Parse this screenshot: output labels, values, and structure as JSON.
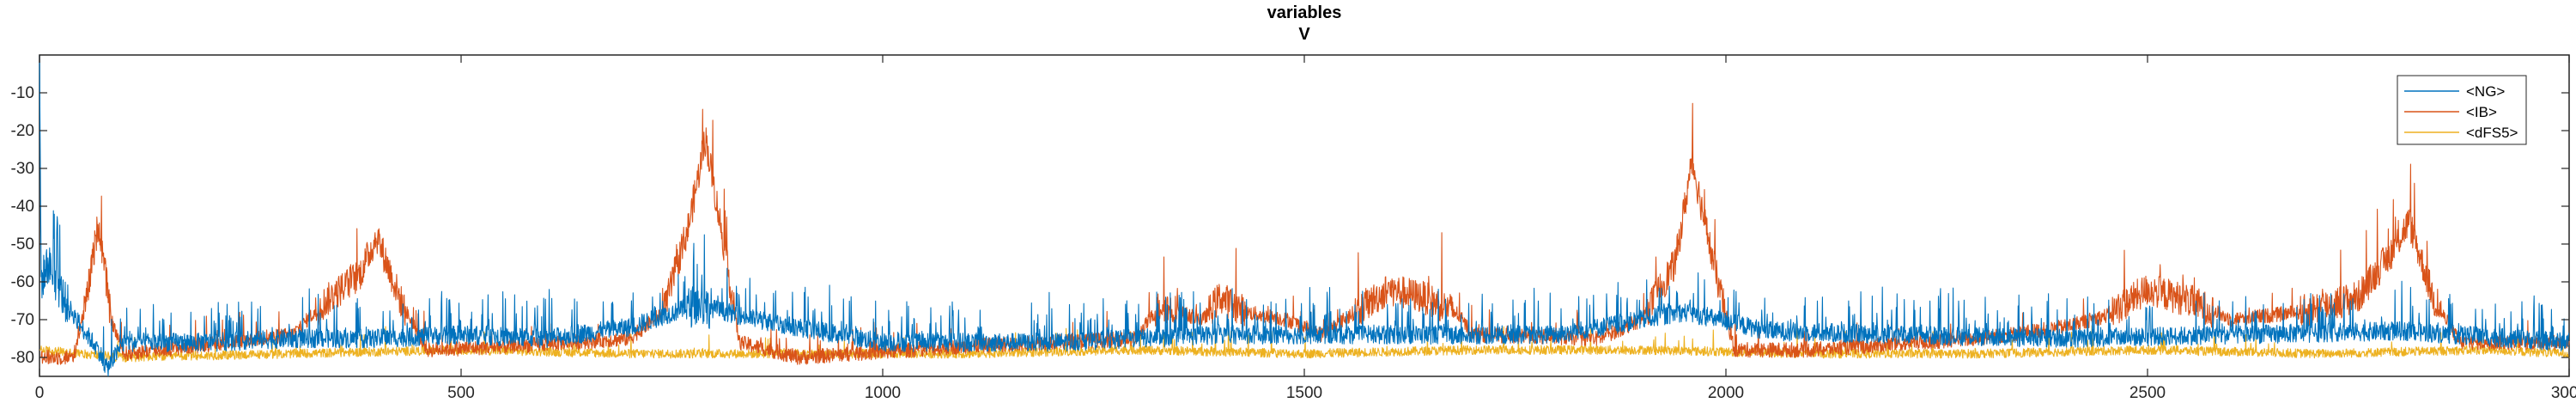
{
  "chart_data": {
    "type": "line",
    "title": "variables",
    "subtitle": "V",
    "xlabel": "",
    "ylabel": "",
    "xlim": [
      0,
      3000
    ],
    "ylim": [
      -85,
      0
    ],
    "x_ticks": [
      0,
      500,
      1000,
      1500,
      2000,
      2500,
      3000
    ],
    "x_tick_labels": [
      "0",
      "500",
      "1000",
      "1500",
      "2000",
      "2500",
      "3000"
    ],
    "y_ticks": [
      -80,
      -70,
      -60,
      -50,
      -40,
      -30,
      -20,
      -10
    ],
    "y_tick_labels": [
      "-80",
      "-70",
      "-60",
      "-50",
      "-40",
      "-30",
      "-20",
      "-10"
    ],
    "grid": false,
    "legend_position": "top-right",
    "series": [
      {
        "name": "<NG>",
        "color": "#0072BD",
        "baseline": -75,
        "noise": 2.5,
        "spike_rate": 0.11,
        "spike_height": 11,
        "points": [
          [
            0,
            0
          ],
          [
            2,
            -60
          ],
          [
            10,
            -55
          ],
          [
            30,
            -65
          ],
          [
            50,
            -72
          ],
          [
            70,
            -78
          ],
          [
            80,
            -83
          ],
          [
            100,
            -76
          ],
          [
            200,
            -76
          ],
          [
            300,
            -75
          ],
          [
            400,
            -75
          ],
          [
            500,
            -74
          ],
          [
            600,
            -75
          ],
          [
            700,
            -72
          ],
          [
            780,
            -66
          ],
          [
            850,
            -70
          ],
          [
            1000,
            -76
          ],
          [
            1200,
            -76
          ],
          [
            1400,
            -74
          ],
          [
            1600,
            -74
          ],
          [
            1800,
            -74
          ],
          [
            1950,
            -68
          ],
          [
            2050,
            -73
          ],
          [
            2200,
            -74
          ],
          [
            2400,
            -75
          ],
          [
            2600,
            -74
          ],
          [
            2800,
            -73
          ],
          [
            3000,
            -76
          ]
        ]
      },
      {
        "name": "<IB>",
        "color": "#D95319",
        "baseline": -76,
        "noise": 2,
        "spike_rate": 0.03,
        "spike_height": 7,
        "points": [
          [
            0,
            -80
          ],
          [
            40,
            -80
          ],
          [
            55,
            -66
          ],
          [
            70,
            -44
          ],
          [
            85,
            -70
          ],
          [
            100,
            -79
          ],
          [
            300,
            -74
          ],
          [
            340,
            -65
          ],
          [
            380,
            -58
          ],
          [
            400,
            -48
          ],
          [
            430,
            -66
          ],
          [
            460,
            -78
          ],
          [
            560,
            -77
          ],
          [
            700,
            -75
          ],
          [
            740,
            -68
          ],
          [
            770,
            -45
          ],
          [
            790,
            -22
          ],
          [
            810,
            -48
          ],
          [
            830,
            -76
          ],
          [
            900,
            -80
          ],
          [
            1100,
            -77
          ],
          [
            1300,
            -75
          ],
          [
            1330,
            -66
          ],
          [
            1350,
            -68
          ],
          [
            1380,
            -70
          ],
          [
            1400,
            -64
          ],
          [
            1430,
            -68
          ],
          [
            1480,
            -70
          ],
          [
            1520,
            -74
          ],
          [
            1560,
            -68
          ],
          [
            1600,
            -62
          ],
          [
            1640,
            -64
          ],
          [
            1680,
            -68
          ],
          [
            1700,
            -74
          ],
          [
            1850,
            -75
          ],
          [
            1900,
            -70
          ],
          [
            1940,
            -55
          ],
          [
            1960,
            -28
          ],
          [
            1985,
            -55
          ],
          [
            2010,
            -78
          ],
          [
            2100,
            -78
          ],
          [
            2300,
            -75
          ],
          [
            2400,
            -72
          ],
          [
            2450,
            -69
          ],
          [
            2500,
            -62
          ],
          [
            2550,
            -65
          ],
          [
            2600,
            -70
          ],
          [
            2680,
            -68
          ],
          [
            2750,
            -64
          ],
          [
            2790,
            -52
          ],
          [
            2810,
            -44
          ],
          [
            2840,
            -65
          ],
          [
            2870,
            -76
          ],
          [
            3000,
            -76
          ]
        ]
      },
      {
        "name": "<dFS5>",
        "color": "#EDB120",
        "baseline": -79,
        "noise": 1.2,
        "spike_rate": 0.025,
        "spike_height": 6,
        "points": [
          [
            0,
            -78
          ],
          [
            100,
            -80
          ],
          [
            300,
            -79
          ],
          [
            500,
            -78
          ],
          [
            700,
            -79
          ],
          [
            900,
            -79
          ],
          [
            1100,
            -79
          ],
          [
            1300,
            -78
          ],
          [
            1500,
            -79
          ],
          [
            1700,
            -78
          ],
          [
            1900,
            -78
          ],
          [
            2100,
            -79
          ],
          [
            2300,
            -79
          ],
          [
            2500,
            -78
          ],
          [
            2700,
            -79
          ],
          [
            2900,
            -78
          ],
          [
            3000,
            -79
          ]
        ]
      }
    ]
  }
}
